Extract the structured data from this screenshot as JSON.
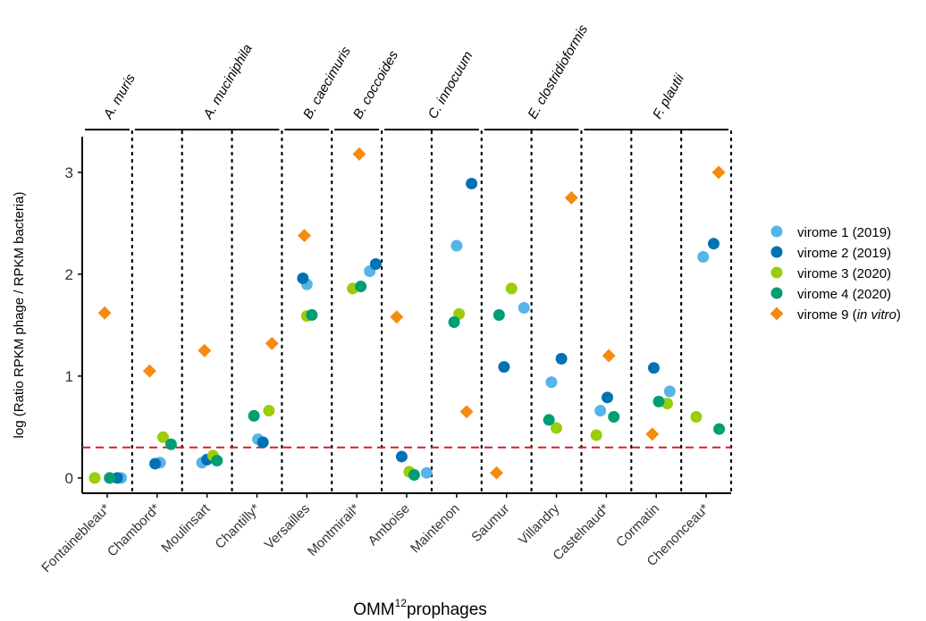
{
  "chart_data": {
    "type": "scatter",
    "xlabel": "OMM",
    "xlabel_sup": "12",
    "xlabel_suffix": "prophages",
    "ylabel": "log (Ratio RPKM phage / RPKM bacteria)",
    "ylim": [
      -0.15,
      3.35
    ],
    "yticks": [
      0,
      1,
      2,
      3
    ],
    "threshold": 0.3,
    "categories": [
      "Fontainebleau*",
      "Chambord*",
      "Moulinsart",
      "Chantilly*",
      "Versailles",
      "Montmirail*",
      "Amboise",
      "Maintenon",
      "Saumur",
      "Villandry",
      "Castelnaud*",
      "Cormatin",
      "Chenonceau*"
    ],
    "groups": [
      {
        "label": "A. muris",
        "start": 0,
        "end": 0
      },
      {
        "label": "A. muciniphila",
        "start": 1,
        "end": 3
      },
      {
        "label": "B. caecimuris",
        "start": 4,
        "end": 4
      },
      {
        "label": "B. coccoides",
        "start": 5,
        "end": 5
      },
      {
        "label": "C. innocuum",
        "start": 6,
        "end": 7
      },
      {
        "label": "E. clostridioformis",
        "start": 8,
        "end": 9
      },
      {
        "label": "F. plautii",
        "start": 10,
        "end": 12
      }
    ],
    "legend_position": "right",
    "series": [
      {
        "name": "virome 1 (2019)",
        "marker": "circle",
        "color": "#56B4E9",
        "x": [
          0.28,
          0.06,
          -0.1,
          0.02,
          0.0,
          0.26,
          0.4,
          0.0,
          0.35,
          -0.1,
          -0.12,
          0.27,
          -0.06
        ],
        "values": [
          0.0,
          0.15,
          0.15,
          0.38,
          1.9,
          2.03,
          0.05,
          2.28,
          1.67,
          0.94,
          0.66,
          0.85,
          2.17
        ]
      },
      {
        "name": "virome 2 (2019)",
        "marker": "circle",
        "color": "#0072B2",
        "x": [
          0.2,
          -0.04,
          0.0,
          0.12,
          -0.08,
          0.38,
          -0.1,
          0.3,
          -0.05,
          0.1,
          0.02,
          -0.05,
          0.15
        ],
        "values": [
          0.0,
          0.14,
          0.18,
          0.35,
          1.96,
          2.1,
          0.21,
          2.89,
          1.09,
          1.17,
          0.79,
          1.08,
          2.3
        ]
      },
      {
        "name": "virome 3 (2020)",
        "marker": "circle",
        "color": "#9ACD0A",
        "x": [
          -0.25,
          0.12,
          0.12,
          0.24,
          0.0,
          -0.08,
          0.05,
          0.05,
          0.1,
          0.0,
          -0.2,
          0.22,
          -0.2
        ],
        "values": [
          0.0,
          0.4,
          0.22,
          0.66,
          1.59,
          1.86,
          0.06,
          1.61,
          1.86,
          0.49,
          0.42,
          0.73,
          0.6
        ],
        "values_note": null
      },
      {
        "name": "virome 4 (2020)",
        "marker": "circle",
        "color": "#009E73",
        "x": [
          0.05,
          0.28,
          0.2,
          -0.06,
          0.1,
          0.08,
          0.15,
          -0.05,
          -0.15,
          -0.15,
          0.15,
          0.05,
          0.26
        ],
        "values": [
          0.0,
          0.33,
          0.17,
          0.61,
          1.6,
          1.88,
          0.03,
          1.53,
          1.6,
          0.57,
          0.6,
          0.75,
          0.48
        ]
      },
      {
        "name": "virome 9 (",
        "name_italic": "in vitro",
        "name_suffix": ")",
        "marker": "diamond",
        "color": "#F58B0F",
        "x": [
          -0.05,
          -0.15,
          -0.05,
          0.3,
          -0.05,
          0.05,
          -0.2,
          0.2,
          -0.2,
          0.3,
          0.05,
          -0.08,
          0.25
        ],
        "values": [
          1.62,
          1.05,
          1.25,
          1.32,
          2.38,
          3.18,
          1.58,
          0.65,
          0.05,
          2.75,
          1.2,
          0.43,
          3.0
        ]
      }
    ]
  }
}
